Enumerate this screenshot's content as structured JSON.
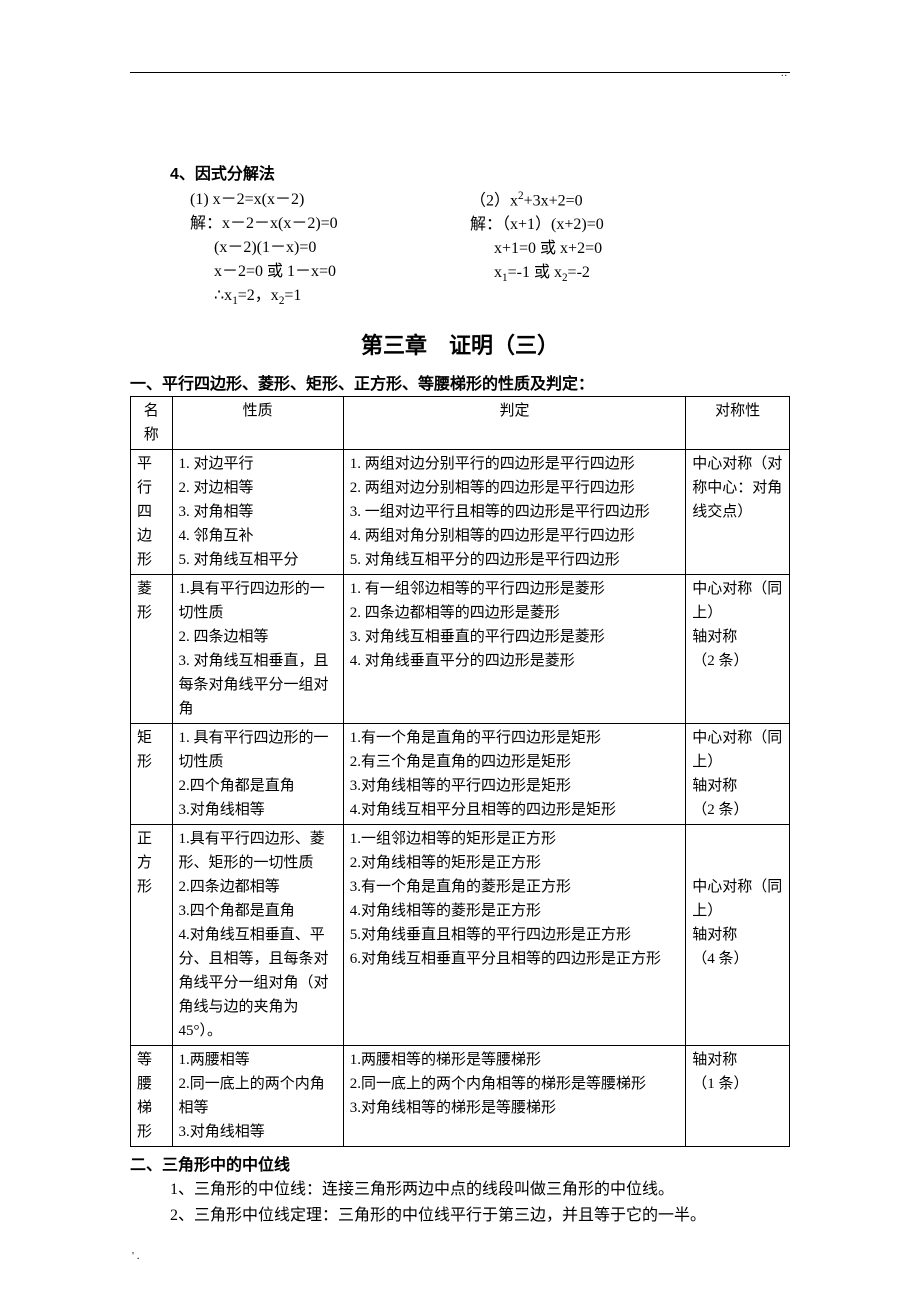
{
  "top_dots": "..",
  "bottom_mark": "' .",
  "sec4_heading": "4、因式分解法",
  "eq_left": [
    "(1) x－2=x(x－2)",
    "解：x－2－x(x－2)=0",
    "      (x－2)(1－x)=0",
    "      x－2=0 或 1－x=0",
    "      ∴x<sub>1</sub>=2，x<sub>2</sub>=1"
  ],
  "eq_right": [
    "（2）x<sup>2</sup>+3x+2=0",
    "解：（x+1）(x+2)=0",
    "      x+1=0 或 x+2=0",
    "      x<sub>1</sub>=-1 或 x<sub>2</sub>=-2"
  ],
  "chapter_title": "第三章　证明（三）",
  "section1_title": "一、平行四边形、菱形、矩形、正方形、等腰梯形的性质及判定：",
  "table": {
    "headers": [
      "名称",
      "性质",
      "判定",
      "对称性"
    ],
    "rows": [
      {
        "name": "平行四边形",
        "prop": "1. 对边平行\n2. 对边相等\n3. 对角相等\n4. 邻角互补\n5. 对角线互相平分",
        "judge": "1. 两组对边分别平行的四边形是平行四边形\n2. 两组对边分别相等的四边形是平行四边形\n3. 一组对边平行且相等的四边形是平行四边形\n4. 两组对角分别相等的四边形是平行四边形\n5. 对角线互相平分的四边形是平行四边形",
        "sym": "中心对称（对称中心：对角线交点）"
      },
      {
        "name": "菱形",
        "prop": "1.具有平行四边形的一切性质\n2. 四条边相等\n3. 对角线互相垂直，且每条对角线平分一组对角",
        "judge": "1. 有一组邻边相等的平行四边形是菱形\n2. 四条边都相等的四边形是菱形\n3. 对角线互相垂直的平行四边形是菱形\n4. 对角线垂直平分的四边形是菱形",
        "sym": "中心对称（同上）\n轴对称\n（2 条）"
      },
      {
        "name": "矩形",
        "prop": "1. 具有平行四边形的一切性质\n2.四个角都是直角\n3.对角线相等",
        "judge": "1.有一个角是直角的平行四边形是矩形\n2.有三个角是直角的四边形是矩形\n3.对角线相等的平行四边形是矩形\n4.对角线互相平分且相等的四边形是矩形",
        "sym": "中心对称（同上）\n轴对称\n（2 条）"
      },
      {
        "name": "正方形",
        "prop": "1.具有平行四边形、菱形、矩形的一切性质\n2.四条边都相等\n3.四个角都是直角\n4.对角线互相垂直、平分、且相等，且每条对角线平分一组对角（对角线与边的夹角为 45°）。",
        "judge": "1.一组邻边相等的矩形是正方形\n2.对角线相等的矩形是正方形\n3.有一个角是直角的菱形是正方形\n4.对角线相等的菱形是正方形\n5.对角线垂直且相等的平行四边形是正方形\n6.对角线互相垂直平分且相等的四边形是正方形",
        "sym": "\n\n中心对称（同上）\n轴对称\n（4 条）"
      },
      {
        "name": "等腰梯形",
        "prop": "1.两腰相等\n2.同一底上的两个内角相等\n3.对角线相等",
        "judge": "1.两腰相等的梯形是等腰梯形\n2.同一底上的两个内角相等的梯形是等腰梯形\n3.对角线相等的梯形是等腰梯形",
        "sym": "轴对称\n（1 条）"
      }
    ]
  },
  "section2_title": "二、三角形中的中位线",
  "body_lines": [
    "1、三角形的中位线：连接三角形两边中点的线段叫做三角形的中位线。",
    "2、三角形中位线定理：三角形的中位线平行于第三边，并且等于它的一半。"
  ]
}
